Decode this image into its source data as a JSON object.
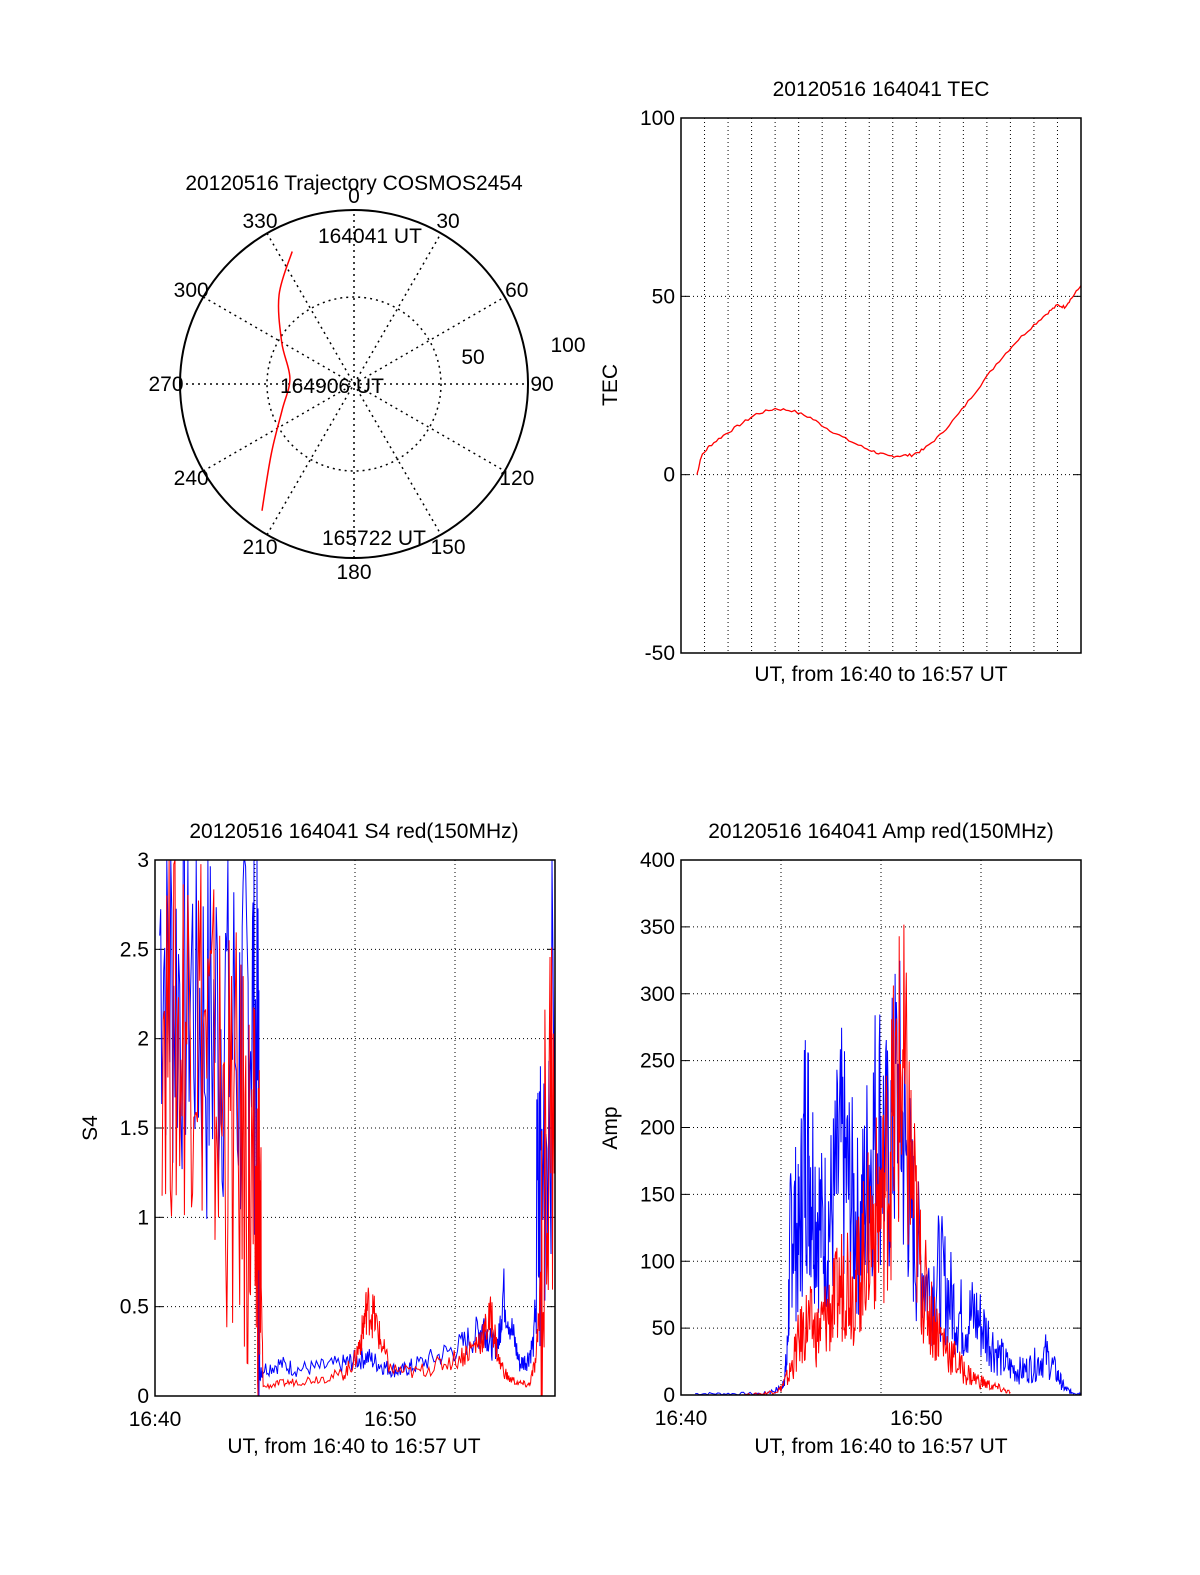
{
  "chart_data": [
    {
      "type": "polar",
      "title": "20120516 Trajectory COSMOS2454",
      "angle_labels": [
        "0",
        "30",
        "60",
        "90",
        "120",
        "150",
        "180",
        "210",
        "240",
        "270",
        "300",
        "330"
      ],
      "radial_labels": [
        "50",
        "100"
      ],
      "radial_range": [
        0,
        100
      ],
      "grid": true,
      "series": [
        {
          "color": "#ff0000",
          "points": [
            {
              "az": 335,
              "r": 84
            },
            {
              "az": 320,
              "r": 67
            },
            {
              "az": 300,
              "r": 48
            },
            {
              "az": 275,
              "r": 37
            },
            {
              "az": 250,
              "r": 44
            },
            {
              "az": 230,
              "r": 62
            },
            {
              "az": 216,
              "r": 90
            }
          ]
        }
      ],
      "annotations": [
        {
          "text": "164041 UT",
          "az": 335,
          "r": 84
        },
        {
          "text": "164906 UT",
          "az": 0,
          "r": 0
        },
        {
          "text": "165722 UT",
          "az": 216,
          "r": 90
        }
      ]
    },
    {
      "type": "line",
      "title": "20120516 164041 TEC",
      "xlabel": "UT, from 16:40 to 16:57 UT",
      "ylabel": "TEC",
      "xlim": [
        0,
        17
      ],
      "ylim": [
        -50,
        100
      ],
      "yticks": [
        -50,
        0,
        50,
        100
      ],
      "grid": true,
      "series": [
        {
          "color": "#ff0000",
          "x": [
            0.68,
            0.85,
            1.2,
            1.8,
            2.5,
            3.2,
            4.0,
            4.7,
            5.5,
            6.2,
            7.0,
            7.8,
            8.4,
            8.8,
            9.3,
            9.8,
            10.3,
            11.0,
            11.8,
            12.6,
            13.4,
            14.2,
            15.0,
            15.6,
            16.0,
            16.3,
            16.6,
            17.0
          ],
          "y": [
            0,
            5,
            8,
            11,
            14,
            17,
            18.5,
            18,
            16,
            13,
            10,
            7.5,
            6,
            5.2,
            5.3,
            5.5,
            7,
            11,
            17,
            24,
            31,
            37,
            42,
            45.5,
            47.5,
            47,
            49.5,
            53
          ]
        }
      ]
    },
    {
      "type": "line",
      "title": "20120516 164041 S4 red(150MHz)",
      "xlabel": "UT, from 16:40 to 16:57 UT",
      "ylabel": "S4",
      "xlim": [
        0,
        17
      ],
      "ylim": [
        0,
        3
      ],
      "xtick_labels": [
        "16:40",
        "16:50"
      ],
      "ytick_labels": [
        "0",
        "0.5",
        "1",
        "1.5",
        "2",
        "2.5",
        "3"
      ],
      "grid": true,
      "series": [
        {
          "color": "#0000ff",
          "x": [
            0.2,
            0.8,
            1.5,
            2.2,
            2.9,
            3.6,
            4.1,
            4.4,
            4.45,
            4.6,
            5.3,
            6.0,
            7.0,
            8.0,
            8.5,
            9.0,
            9.5,
            10.0,
            10.5,
            11.0,
            12.0,
            13.0,
            13.7,
            14.0,
            14.3,
            14.6,
            14.8,
            15.2,
            15.5,
            15.8,
            16.1,
            16.4,
            17.0
          ],
          "y": [
            2.6,
            2.3,
            2.4,
            2.0,
            2.2,
            1.9,
            2.3,
            1.8,
            0.12,
            0.15,
            0.18,
            0.15,
            0.16,
            0.18,
            0.2,
            0.22,
            0.18,
            0.15,
            0.14,
            0.17,
            0.22,
            0.28,
            0.35,
            0.4,
            0.28,
            0.3,
            0.58,
            0.35,
            0.18,
            0.2,
            0.3,
            1.2,
            2.3
          ]
        },
        {
          "color": "#ff0000",
          "x": [
            0.3,
            1.0,
            1.7,
            2.4,
            3.1,
            3.8,
            4.2,
            4.45,
            4.6,
            5.3,
            6.0,
            7.0,
            8.0,
            8.5,
            8.8,
            9.0,
            9.3,
            9.6,
            10.0,
            11.0,
            12.0,
            13.0,
            13.6,
            14.0,
            14.3,
            14.6,
            15.0,
            15.5,
            15.9,
            16.2,
            16.5,
            17.0
          ],
          "y": [
            2.3,
            2.0,
            2.3,
            1.8,
            1.5,
            1.3,
            1.0,
            0.95,
            0.05,
            0.07,
            0.08,
            0.1,
            0.12,
            0.2,
            0.35,
            0.5,
            0.45,
            0.3,
            0.15,
            0.13,
            0.17,
            0.22,
            0.28,
            0.35,
            0.45,
            0.2,
            0.1,
            0.07,
            0.06,
            0.2,
            0.9,
            2.0
          ]
        }
      ]
    },
    {
      "type": "line",
      "title": "20120516 164041 Amp red(150MHz)",
      "xlabel": "UT, from 16:40 to 16:57 UT",
      "ylabel": "Amp",
      "xlim": [
        0,
        17
      ],
      "ylim": [
        0,
        400
      ],
      "xtick_labels": [
        "16:40",
        "16:50"
      ],
      "ytick_labels": [
        "0",
        "50",
        "100",
        "150",
        "200",
        "250",
        "300",
        "350",
        "400"
      ],
      "grid": true,
      "series": [
        {
          "color": "#0000ff",
          "x": [
            0.6,
            2.0,
            3.5,
            4.3,
            4.5,
            4.7,
            5.0,
            5.3,
            5.6,
            6.0,
            6.4,
            6.8,
            7.2,
            7.6,
            8.0,
            8.4,
            8.8,
            9.2,
            9.6,
            10.0,
            10.5,
            11.0,
            11.5,
            12.0,
            12.5,
            13.0,
            13.5,
            14.0,
            14.5,
            15.0,
            15.5,
            16.0,
            16.3,
            16.6,
            17.0
          ],
          "y": [
            1,
            1,
            1,
            5,
            25,
            140,
            110,
            200,
            160,
            120,
            135,
            180,
            150,
            120,
            175,
            210,
            170,
            230,
            170,
            110,
            80,
            90,
            70,
            55,
            60,
            45,
            30,
            20,
            18,
            22,
            30,
            15,
            5,
            2,
            1
          ]
        },
        {
          "color": "#ff0000",
          "x": [
            2.5,
            3.5,
            4.2,
            4.6,
            5.0,
            5.4,
            5.8,
            6.2,
            6.6,
            7.0,
            7.4,
            7.8,
            8.2,
            8.6,
            9.0,
            9.4,
            9.8,
            10.2,
            10.6,
            11.0,
            11.5,
            12.0,
            12.5,
            13.0,
            13.5,
            14.0
          ],
          "y": [
            0,
            1,
            4,
            15,
            40,
            55,
            45,
            60,
            70,
            95,
            80,
            110,
            130,
            150,
            200,
            245,
            160,
            90,
            60,
            45,
            30,
            18,
            12,
            8,
            5,
            2
          ]
        }
      ]
    }
  ]
}
